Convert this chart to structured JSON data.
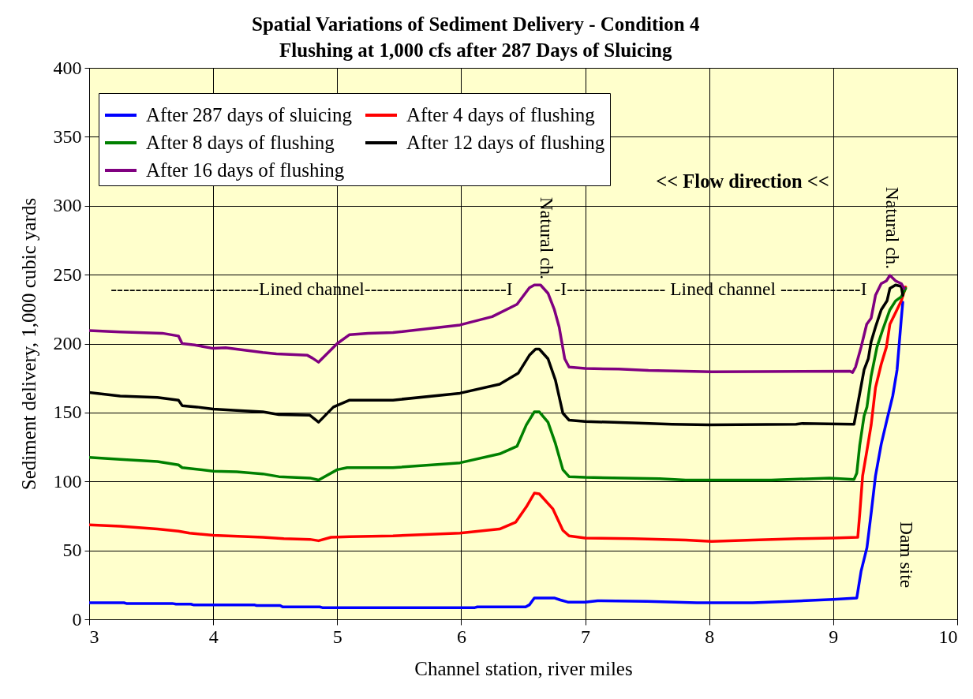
{
  "chart_data": {
    "type": "line",
    "title": "Spatial Variations of Sediment Delivery - Condition 4",
    "subtitle": "Flushing at 1,000 cfs after 287 Days of Sluicing",
    "xlabel": "Channel station, river miles",
    "ylabel": "Sediment delivery, 1,000 cubic yards",
    "xlim": [
      3,
      10
    ],
    "xticks": [
      3,
      4,
      5,
      6,
      7,
      8,
      9,
      10
    ],
    "ylim": [
      0,
      400
    ],
    "yticks": [
      0,
      50,
      100,
      150,
      200,
      250,
      300,
      350,
      400
    ],
    "grid": true,
    "legend": "top left",
    "annotations": [
      "------------------------Lined channel-----------------------I",
      "-I---------------- Lined channel -------------I",
      "Natural ch.",
      "Natural ch.",
      "Dam site",
      "<< Flow direction <<"
    ],
    "series": [
      {
        "name": "After 287 days of sluicing",
        "color": "#0000ff",
        "x": [
          3.0,
          3.28,
          3.3,
          3.67,
          3.7,
          3.82,
          3.84,
          4.33,
          4.35,
          4.54,
          4.56,
          4.86,
          4.88,
          6.11,
          6.13,
          6.52,
          6.55,
          6.59,
          6.75,
          6.8,
          6.86,
          7.0,
          7.1,
          7.5,
          7.9,
          8.35,
          8.65,
          9.0,
          9.19,
          9.225,
          9.272,
          9.306,
          9.341,
          9.387,
          9.434,
          9.48,
          9.515,
          9.538,
          9.549,
          9.561
        ],
        "values": [
          12,
          12,
          11.5,
          11.5,
          11,
          11,
          10.5,
          10.5,
          10,
          10,
          9,
          9,
          8.5,
          8.5,
          9,
          9,
          10.5,
          15.5,
          15.5,
          14,
          12.5,
          12.5,
          13.5,
          13,
          12,
          12,
          13,
          14.5,
          15.5,
          35,
          52,
          77,
          104,
          127,
          145,
          162,
          181,
          206,
          218,
          230
        ]
      },
      {
        "name": "After 4 days of flushing",
        "color": "#ff0000",
        "x": [
          3.0,
          3.25,
          3.55,
          3.72,
          3.81,
          4.0,
          4.4,
          4.57,
          4.78,
          4.85,
          4.95,
          5.1,
          5.45,
          5.99,
          6.31,
          6.44,
          6.525,
          6.59,
          6.63,
          6.74,
          6.82,
          6.87,
          7.0,
          7.38,
          7.81,
          8.02,
          8.35,
          8.72,
          9.0,
          9.198,
          9.214,
          9.237,
          9.272,
          9.306,
          9.341,
          9.387,
          9.429,
          9.457,
          9.503,
          9.549,
          9.584
        ],
        "values": [
          68.5,
          67.5,
          65.5,
          64,
          62.5,
          61,
          59.5,
          58.5,
          58,
          57,
          59.5,
          60,
          60.5,
          62.5,
          65.5,
          70.5,
          81.5,
          91.5,
          91,
          80,
          64.5,
          60.5,
          59,
          58.5,
          57.5,
          56.5,
          57.5,
          58.5,
          59,
          59.5,
          76.5,
          104,
          122.5,
          141,
          168,
          185,
          197.5,
          214,
          222.5,
          231,
          241
        ]
      },
      {
        "name": "After 8 days of flushing",
        "color": "#008000",
        "x": [
          3.0,
          3.25,
          3.55,
          3.72,
          3.75,
          4.0,
          4.19,
          4.4,
          4.53,
          4.78,
          4.85,
          5.0,
          5.08,
          5.45,
          5.99,
          6.31,
          6.45,
          6.525,
          6.59,
          6.63,
          6.7,
          6.76,
          6.82,
          6.87,
          7.0,
          7.6,
          7.81,
          8.5,
          8.97,
          9.168,
          9.19,
          9.214,
          9.249,
          9.272,
          9.306,
          9.353,
          9.399,
          9.457,
          9.503,
          9.549,
          9.584
        ],
        "values": [
          117.5,
          116,
          114.5,
          112,
          110,
          107.5,
          107,
          105.5,
          103.5,
          102.5,
          101,
          108.5,
          110,
          110,
          113.5,
          120,
          125.5,
          141,
          150.5,
          150.5,
          143,
          127.5,
          108.5,
          103.5,
          103,
          102,
          101,
          101,
          102.5,
          101.5,
          106,
          126.5,
          147.5,
          154,
          176.5,
          197.5,
          210,
          224.5,
          231,
          234,
          240
        ]
      },
      {
        "name": "After 12 days of flushing",
        "color": "#000000",
        "x": [
          3.0,
          3.25,
          3.55,
          3.72,
          3.75,
          3.87,
          4.0,
          4.19,
          4.4,
          4.53,
          4.78,
          4.85,
          4.97,
          5.1,
          5.45,
          5.99,
          6.31,
          6.46,
          6.55,
          6.6,
          6.63,
          6.7,
          6.76,
          6.82,
          6.87,
          7.0,
          7.38,
          7.7,
          8.0,
          8.7,
          8.75,
          9.168,
          9.202,
          9.249,
          9.283,
          9.306,
          9.341,
          9.387,
          9.434,
          9.457,
          9.503,
          9.549,
          9.561
        ],
        "values": [
          164.5,
          162,
          161,
          159,
          155,
          154,
          152.5,
          151.5,
          150.5,
          148.5,
          148,
          143,
          154,
          159,
          159,
          164,
          170.5,
          178.5,
          191.5,
          196,
          196,
          189,
          173.5,
          149.5,
          144.5,
          143.5,
          142.5,
          141.5,
          141,
          141.5,
          142,
          141.5,
          158,
          181,
          189,
          201.5,
          212,
          224.5,
          231,
          240,
          242.5,
          241.5,
          235
        ]
      },
      {
        "name": "After 16 days of flushing",
        "color": "#800080",
        "x": [
          3.0,
          3.25,
          3.59,
          3.72,
          3.75,
          3.85,
          4.0,
          4.1,
          4.4,
          4.51,
          4.76,
          4.8,
          4.85,
          5.0,
          5.1,
          5.25,
          5.45,
          5.99,
          6.25,
          6.45,
          6.55,
          6.59,
          6.64,
          6.7,
          6.75,
          6.79,
          6.835,
          6.87,
          7.0,
          7.27,
          7.51,
          8.02,
          9.133,
          9.156,
          9.18,
          9.225,
          9.27,
          9.306,
          9.341,
          9.387,
          9.429,
          9.457,
          9.503,
          9.549,
          9.572
        ],
        "values": [
          209.5,
          208.5,
          207.5,
          205.5,
          200,
          199,
          196.5,
          197,
          193.5,
          192.5,
          191.5,
          189.5,
          186.5,
          200,
          206.5,
          207.5,
          208,
          213.5,
          219.5,
          228.5,
          240.5,
          242.5,
          242.5,
          236.5,
          225,
          212,
          189,
          183,
          182,
          181.5,
          180.5,
          179.5,
          180,
          179,
          183,
          197.5,
          214,
          218.5,
          235,
          243.5,
          245.5,
          249.5,
          245.5,
          243.5,
          240
        ]
      }
    ]
  }
}
